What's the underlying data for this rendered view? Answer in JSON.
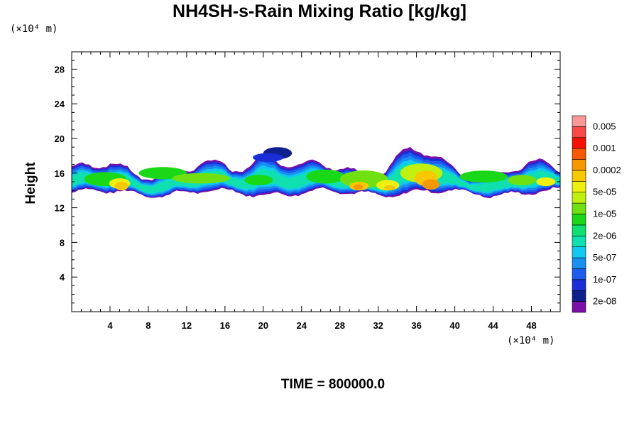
{
  "title": "NH4SH-s-Rain Mixing Ratio [kg/kg]",
  "x_unit": "(×10⁴ m)",
  "y_unit": "(×10⁴ m)",
  "time_label": "TIME = 800000.0",
  "chart_data": {
    "type": "heatmap",
    "title": "NH4SH-s-Rain Mixing Ratio [kg/kg]",
    "ylabel": "Height",
    "xlim": [
      0,
      51
    ],
    "ylim": [
      0,
      30
    ],
    "x_ticks": [
      4,
      8,
      12,
      16,
      20,
      24,
      28,
      32,
      36,
      40,
      44,
      48
    ],
    "y_ticks": [
      4,
      8,
      12,
      16,
      20,
      24,
      28
    ],
    "legend": {
      "position": "right",
      "levels": [
        "2e-08",
        "",
        "1e-07",
        "",
        "5e-07",
        "",
        "2e-06",
        "",
        "1e-05",
        "",
        "5e-05",
        "",
        "0.0002",
        "",
        "0.001",
        "",
        "0.005",
        ""
      ],
      "colors": [
        "#7a10a8",
        "#0f1f8c",
        "#1a2ed8",
        "#1e5cf0",
        "#1890f0",
        "#10c8f0",
        "#10e0b0",
        "#10e070",
        "#18d818",
        "#70e010",
        "#c0f010",
        "#f0f010",
        "#f8c800",
        "#f89800",
        "#f85800",
        "#f81000",
        "#f84848",
        "#f89898"
      ]
    },
    "cloud_layer": {
      "x_range": [
        0,
        51
      ],
      "base_height_range": [
        13,
        14.5
      ],
      "top_height_range": [
        15.5,
        19.2
      ],
      "max_level": "0.0002",
      "max_level_locations_x": [
        5,
        30,
        33,
        37.5
      ],
      "max_level_height_range": [
        13.5,
        15.5
      ]
    }
  }
}
